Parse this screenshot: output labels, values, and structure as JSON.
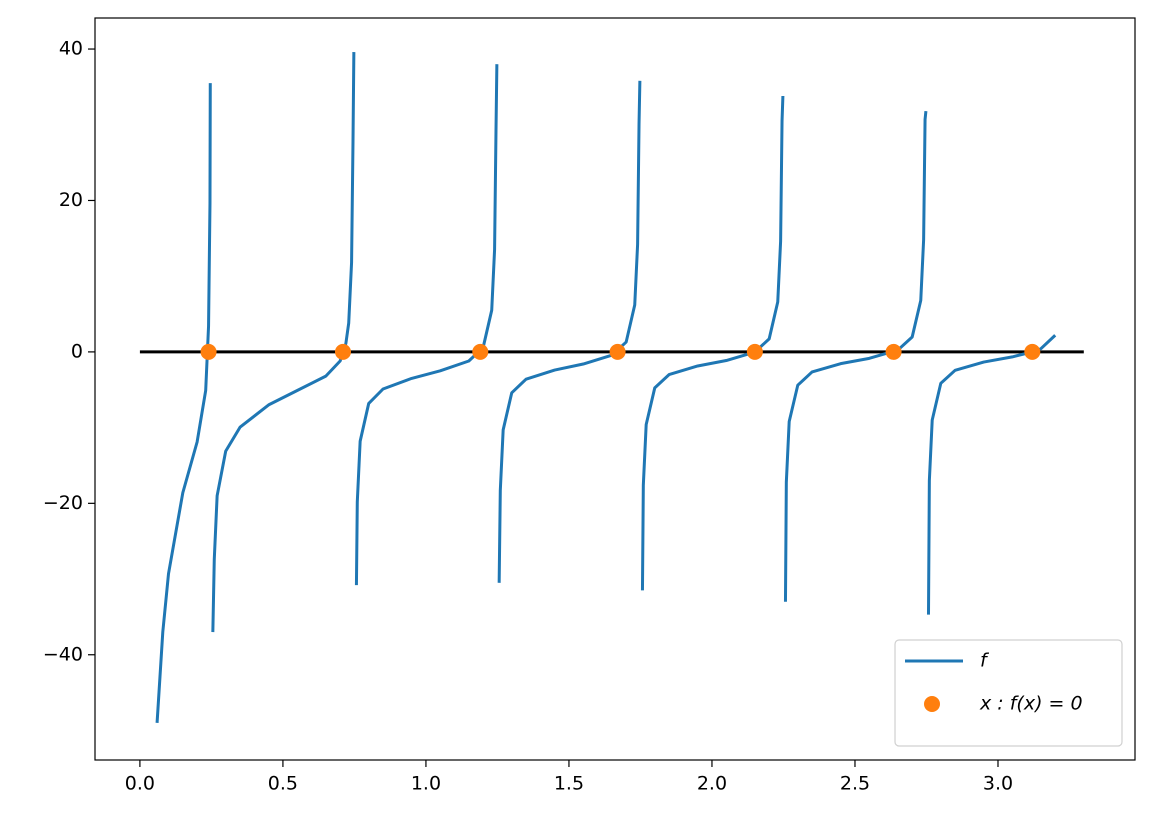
{
  "chart_data": {
    "type": "line",
    "xlim": [
      -0.157,
      3.479
    ],
    "ylim": [
      -53.9,
      44.1
    ],
    "xticks": [
      {
        "value": 0,
        "label": "0.0"
      },
      {
        "value": 0.5,
        "label": "0.5"
      },
      {
        "value": 1,
        "label": "1.0"
      },
      {
        "value": 1.5,
        "label": "1.5"
      },
      {
        "value": 2,
        "label": "2.0"
      },
      {
        "value": 2.5,
        "label": "2.5"
      },
      {
        "value": 3,
        "label": "3.0"
      }
    ],
    "yticks": [
      {
        "value": -40,
        "label": "−40"
      },
      {
        "value": -20,
        "label": "−20"
      },
      0,
      20,
      40
    ],
    "legend": "lower right",
    "zero_line": {
      "x": [
        0,
        3.3
      ],
      "values": [
        0,
        0
      ],
      "color": "#000000"
    },
    "series": [
      {
        "name": "f",
        "type": "line",
        "color": "#1f77b4",
        "x": [
          0.06,
          0.08,
          0.1,
          0.15,
          0.2,
          0.23,
          0.24,
          0.245,
          0.246,
          null,
          0.255,
          0.26,
          0.27,
          0.3,
          0.35,
          0.45,
          0.55,
          0.65,
          0.7,
          0.72,
          0.73,
          0.74,
          0.745,
          0.748,
          null,
          0.757,
          0.76,
          0.77,
          0.8,
          0.85,
          0.95,
          1.05,
          1.15,
          1.2,
          1.23,
          1.24,
          1.245,
          1.248,
          null,
          1.256,
          1.26,
          1.27,
          1.3,
          1.35,
          1.45,
          1.55,
          1.65,
          1.7,
          1.73,
          1.74,
          1.745,
          1.748,
          null,
          1.757,
          1.76,
          1.77,
          1.8,
          1.85,
          1.95,
          2.05,
          2.15,
          2.2,
          2.23,
          2.24,
          2.245,
          2.248,
          null,
          2.257,
          2.26,
          2.27,
          2.3,
          2.35,
          2.45,
          2.55,
          2.65,
          2.7,
          2.73,
          2.74,
          2.745,
          2.748,
          null,
          2.757,
          2.76,
          2.77,
          2.8,
          2.85,
          2.95,
          3.05,
          3.12,
          3.15,
          3.2
        ],
        "values": [
          -49,
          -37,
          -29.3,
          -18.6,
          -11.9,
          -5.1,
          3.4,
          19.6,
          35.5,
          null,
          -37,
          -27.4,
          -19,
          -13.1,
          -9.95,
          -7,
          -5.1,
          -3.2,
          -1.2,
          1.1,
          3.8,
          11.8,
          27.8,
          39.6,
          null,
          -30.8,
          -19.8,
          -11.8,
          -6.8,
          -4.9,
          -3.5,
          -2.5,
          -1.2,
          0.58,
          5.5,
          13.5,
          29.4,
          38,
          null,
          -30.5,
          -18.3,
          -10.3,
          -5.4,
          -3.6,
          -2.4,
          -1.6,
          -0.44,
          1.3,
          6.2,
          14.2,
          30.1,
          35.8,
          null,
          -31.5,
          -17.6,
          -9.6,
          -4.75,
          -3,
          -1.86,
          -1.14,
          -0.02,
          1.72,
          6.6,
          14.6,
          30.5,
          33.8,
          null,
          -33,
          -17.2,
          -9.2,
          -4.4,
          -2.65,
          -1.55,
          -0.85,
          0.24,
          1.97,
          6.8,
          14.8,
          30.7,
          31.8,
          null,
          -34.7,
          -17,
          -9,
          -4.15,
          -2.43,
          -1.34,
          -0.66,
          0,
          0.42,
          2.2
        ]
      },
      {
        "name": "x : f(x) = 0",
        "type": "scatter",
        "color": "#ff7f0e",
        "x": [
          0.24,
          0.71,
          1.19,
          1.67,
          2.15,
          2.635,
          3.12
        ],
        "values": [
          0,
          0,
          0,
          0,
          0,
          0,
          0
        ]
      }
    ]
  }
}
